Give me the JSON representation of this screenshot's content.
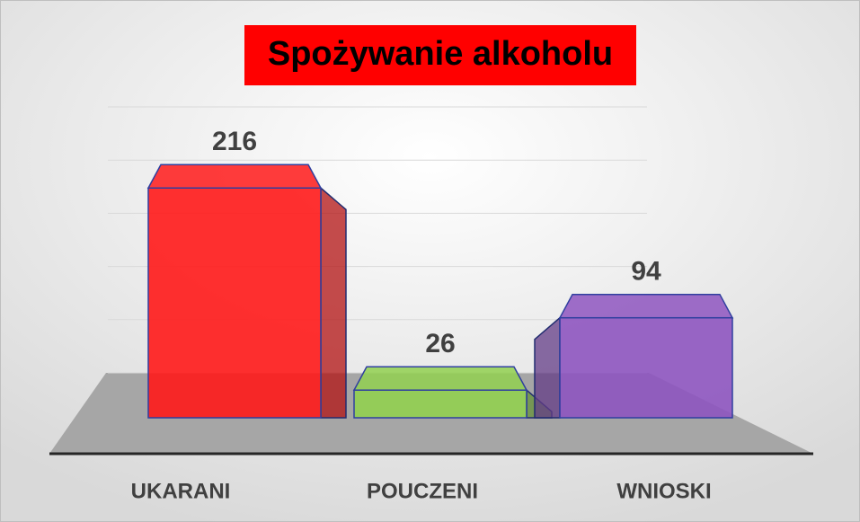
{
  "chart_data": {
    "type": "bar3d",
    "title": "Spożywanie alkoholu",
    "categories": [
      "UKARANI",
      "POUCZENI",
      "WNIOSKI"
    ],
    "series": [
      {
        "name": null,
        "values": [
          216,
          26,
          94
        ],
        "colors": [
          "#ff1a1a",
          "#92d050",
          "#8e55c0"
        ]
      }
    ],
    "ylim": [
      0,
      250
    ],
    "yticks": [
      0,
      50,
      100,
      150,
      200,
      250
    ],
    "grid": true
  }
}
